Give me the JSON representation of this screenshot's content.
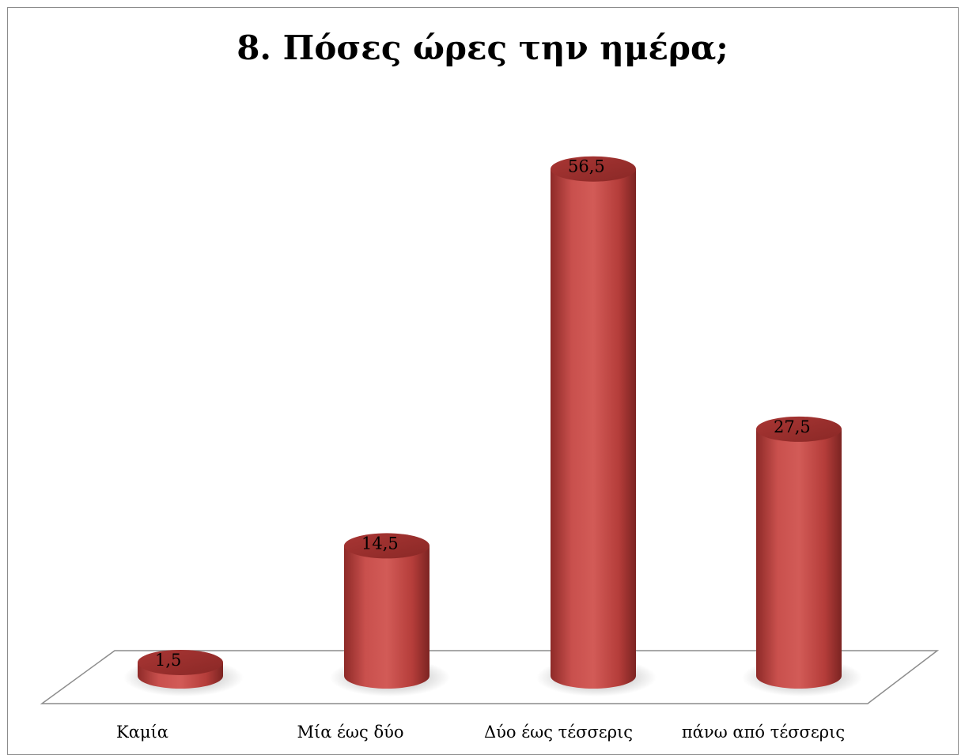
{
  "chart_data": {
    "type": "bar",
    "title": "8. Πόσες ώρες την ημέρα;",
    "categories": [
      "Καμία",
      "Μία έως δύο",
      "Δύο έως τέσσερις",
      "πάνω από τέσσερις"
    ],
    "values": [
      1.5,
      14.5,
      56.5,
      27.5
    ],
    "value_labels": [
      "1,5",
      "14,5",
      "56,5",
      "27,5"
    ],
    "bar_color": "#c0403f",
    "bar_shape": "cylinder",
    "grid": false,
    "ylim": [
      0,
      60
    ]
  }
}
